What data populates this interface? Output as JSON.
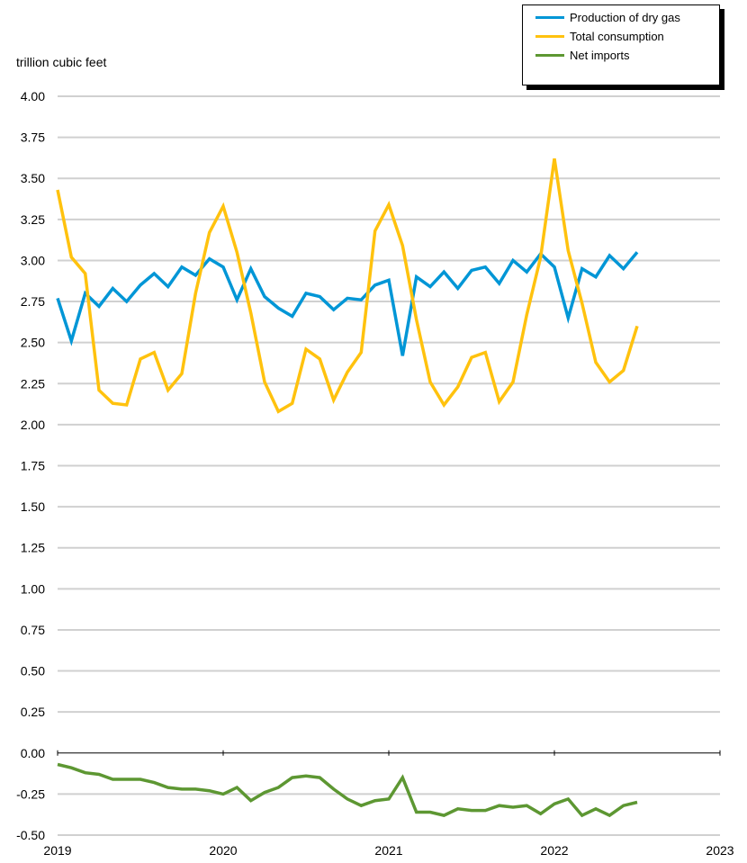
{
  "chart_data": {
    "type": "line",
    "ylabel": "trillion cubic feet",
    "ylim": [
      -0.5,
      4.0
    ],
    "yticks": [
      "4.00",
      "3.75",
      "3.50",
      "3.25",
      "3.00",
      "2.75",
      "2.50",
      "2.25",
      "2.00",
      "1.75",
      "1.50",
      "1.25",
      "1.00",
      "0.75",
      "0.50",
      "0.25",
      "0.00",
      "-0.25",
      "-0.50"
    ],
    "ytick_values": [
      4.0,
      3.75,
      3.5,
      3.25,
      3.0,
      2.75,
      2.5,
      2.25,
      2.0,
      1.75,
      1.5,
      1.25,
      1.0,
      0.75,
      0.5,
      0.25,
      0.0,
      -0.25,
      -0.5
    ],
    "xticks": [
      "2019",
      "2020",
      "2021",
      "2022",
      "2023"
    ],
    "xlim": [
      2019,
      2023
    ],
    "x_start": "2019-01",
    "x_step": "monthly",
    "grid": true,
    "legend_position": "top-right",
    "series": [
      {
        "name": "Production of dry gas",
        "color": "#0096d6",
        "values": [
          2.77,
          2.51,
          2.8,
          2.72,
          2.83,
          2.75,
          2.85,
          2.92,
          2.84,
          2.96,
          2.91,
          3.01,
          2.96,
          2.76,
          2.95,
          2.78,
          2.71,
          2.66,
          2.8,
          2.78,
          2.7,
          2.77,
          2.76,
          2.85,
          2.88,
          2.42,
          2.9,
          2.84,
          2.93,
          2.83,
          2.94,
          2.96,
          2.86,
          3.0,
          2.93,
          3.04,
          2.96,
          2.65,
          2.95,
          2.9,
          3.03,
          2.95,
          3.05
        ]
      },
      {
        "name": "Total consumption",
        "color": "#ffc20e",
        "values": [
          3.43,
          3.02,
          2.92,
          2.21,
          2.13,
          2.12,
          2.4,
          2.44,
          2.21,
          2.31,
          2.8,
          3.17,
          3.33,
          3.05,
          2.68,
          2.26,
          2.08,
          2.13,
          2.46,
          2.4,
          2.15,
          2.32,
          2.44,
          3.18,
          3.34,
          3.09,
          2.64,
          2.26,
          2.12,
          2.23,
          2.41,
          2.44,
          2.14,
          2.26,
          2.67,
          3.02,
          3.62,
          3.06,
          2.74,
          2.38,
          2.26,
          2.33,
          2.6
        ]
      },
      {
        "name": "Net imports",
        "color": "#5d9732",
        "values": [
          -0.07,
          -0.09,
          -0.12,
          -0.13,
          -0.16,
          -0.16,
          -0.16,
          -0.18,
          -0.21,
          -0.22,
          -0.22,
          -0.23,
          -0.25,
          -0.21,
          -0.29,
          -0.24,
          -0.21,
          -0.15,
          -0.14,
          -0.15,
          -0.22,
          -0.28,
          -0.32,
          -0.29,
          -0.28,
          -0.15,
          -0.36,
          -0.36,
          -0.38,
          -0.34,
          -0.35,
          -0.35,
          -0.32,
          -0.33,
          -0.32,
          -0.37,
          -0.31,
          -0.28,
          -0.38,
          -0.34,
          -0.38,
          -0.32,
          -0.3
        ]
      }
    ]
  }
}
